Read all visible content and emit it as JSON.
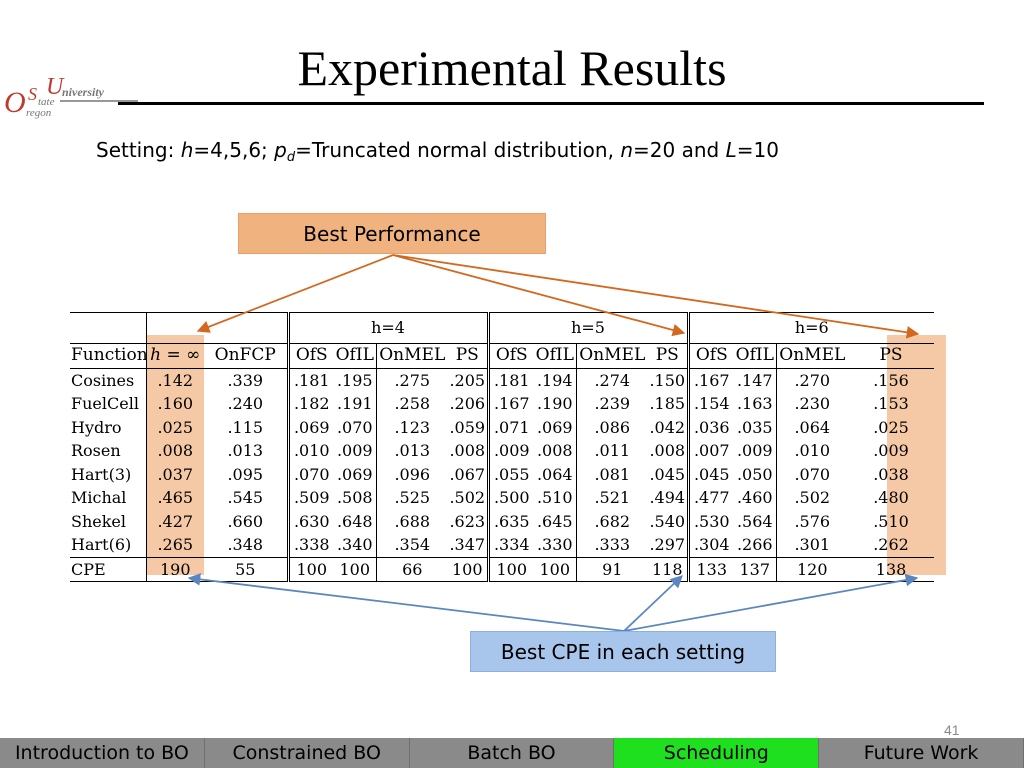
{
  "logo": {
    "letters_1": "O",
    "letters_2": "S",
    "letters_3": "U",
    "word_1": "niversity",
    "word_2": "tate",
    "word_3": "regon"
  },
  "slide": {
    "title": "Experimental Results",
    "setting_prefix": "Setting: ",
    "h_var": "h",
    "h_values": "=4,5,6;  ",
    "pd_var": "p",
    "pd_sub": "d",
    "pd_text": "=Truncated normal distribution, ",
    "n_var": "n",
    "n_text": "=20 and ",
    "L_var": "L",
    "L_text": "=10",
    "page_number": "41"
  },
  "callouts": {
    "best_performance": "Best Performance",
    "best_cpe": "Best CPE in each setting"
  },
  "colors": {
    "highlight": "#f5c9a5",
    "callout_orange": "#f0b27f",
    "callout_blue": "#a8c5eb",
    "arrow_orange": "#d2691e",
    "arrow_blue": "#5b86c0",
    "nav_gray": "#8a8a8a",
    "nav_active": "#1fe01f"
  },
  "table": {
    "groups": [
      "h=4",
      "h=5",
      "h=6"
    ],
    "headers": [
      "Function",
      "h = ∞",
      "OnFCP",
      "OfS",
      "OfIL",
      "OnMEL",
      "PS",
      "OfS",
      "OfIL",
      "OnMEL",
      "PS",
      "OfS",
      "OfIL",
      "OnMEL",
      "PS"
    ],
    "rows": [
      [
        "Cosines",
        ".142",
        ".339",
        ".181",
        ".195",
        ".275",
        ".205",
        ".181",
        ".194",
        ".274",
        ".150",
        ".167",
        ".147",
        ".270",
        ".156"
      ],
      [
        "FuelCell",
        ".160",
        ".240",
        ".182",
        ".191",
        ".258",
        ".206",
        ".167",
        ".190",
        ".239",
        ".185",
        ".154",
        ".163",
        ".230",
        ".153"
      ],
      [
        "Hydro",
        ".025",
        ".115",
        ".069",
        ".070",
        ".123",
        ".059",
        ".071",
        ".069",
        ".086",
        ".042",
        ".036",
        ".035",
        ".064",
        ".025"
      ],
      [
        "Rosen",
        ".008",
        ".013",
        ".010",
        ".009",
        ".013",
        ".008",
        ".009",
        ".008",
        ".011",
        ".008",
        ".007",
        ".009",
        ".010",
        ".009"
      ],
      [
        "Hart(3)",
        ".037",
        ".095",
        ".070",
        ".069",
        ".096",
        ".067",
        ".055",
        ".064",
        ".081",
        ".045",
        ".045",
        ".050",
        ".070",
        ".038"
      ],
      [
        "Michal",
        ".465",
        ".545",
        ".509",
        ".508",
        ".525",
        ".502",
        ".500",
        ".510",
        ".521",
        ".494",
        ".477",
        ".460",
        ".502",
        ".480"
      ],
      [
        "Shekel",
        ".427",
        ".660",
        ".630",
        ".648",
        ".688",
        ".623",
        ".635",
        ".645",
        ".682",
        ".540",
        ".530",
        ".564",
        ".576",
        ".510"
      ],
      [
        "Hart(6)",
        ".265",
        ".348",
        ".338",
        ".340",
        ".354",
        ".347",
        ".334",
        ".330",
        ".333",
        ".297",
        ".304",
        ".266",
        ".301",
        ".262"
      ],
      [
        "CPE",
        "190",
        "55",
        "100",
        "100",
        "66",
        "100",
        "100",
        "100",
        "91",
        "118",
        "133",
        "137",
        "120",
        "138"
      ]
    ]
  },
  "nav": [
    {
      "label": "Introduction to BO",
      "active": false
    },
    {
      "label": "Constrained BO",
      "active": false
    },
    {
      "label": "Batch BO",
      "active": false
    },
    {
      "label": "Scheduling",
      "active": true
    },
    {
      "label": "Future Work",
      "active": false
    }
  ]
}
